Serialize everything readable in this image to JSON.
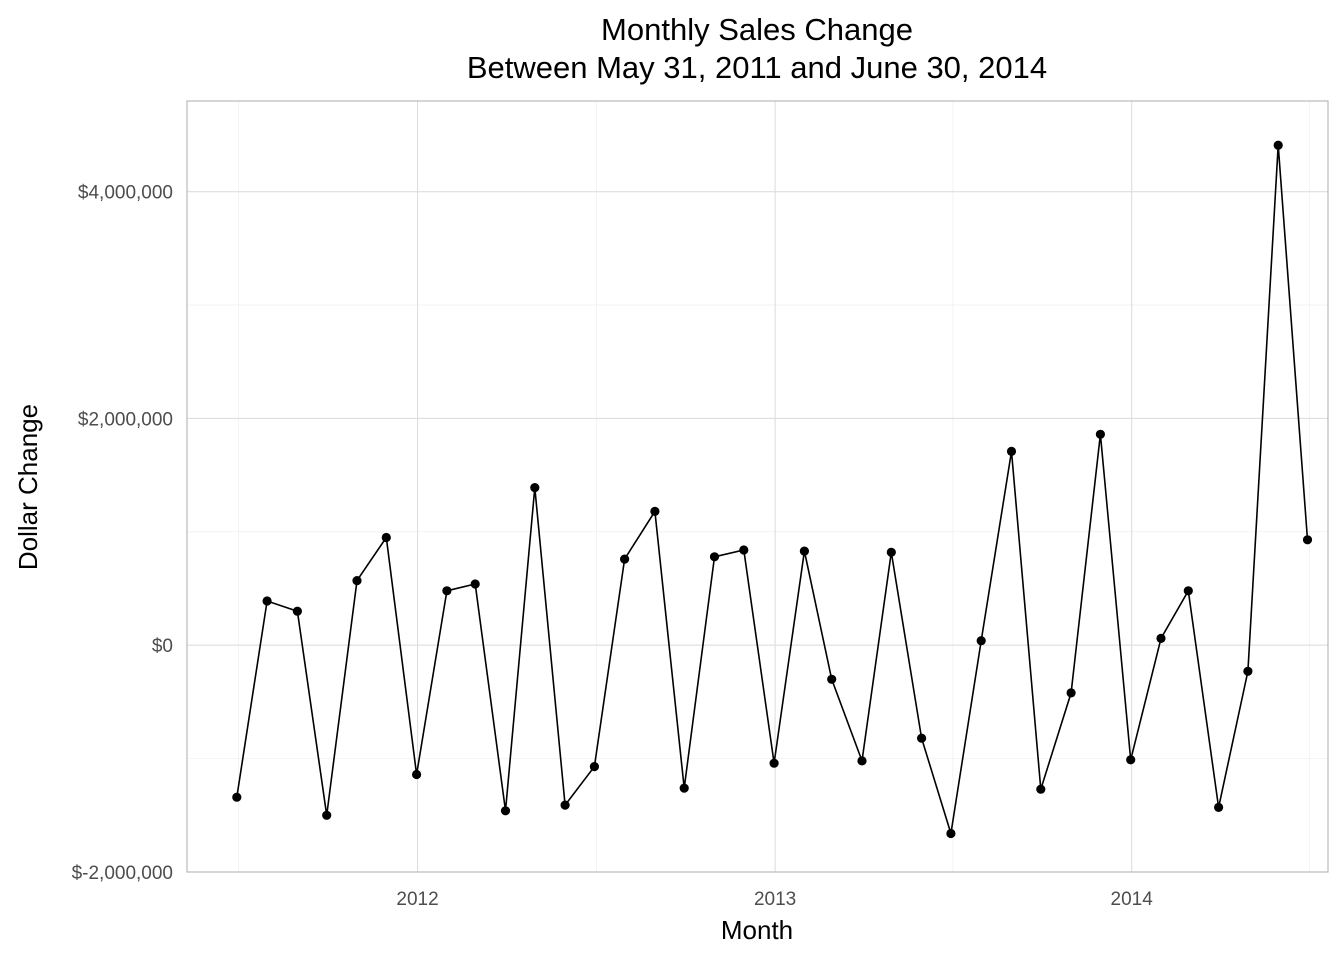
{
  "chart_data": {
    "type": "line",
    "title": "Monthly Sales Change",
    "subtitle": "Between May 31, 2011 and  June 30, 2014",
    "xlabel": "Month",
    "ylabel": "Dollar Change",
    "x_ticks": [
      {
        "label": "2012",
        "date": "2012-01-01"
      },
      {
        "label": "2013",
        "date": "2013-01-01"
      },
      {
        "label": "2014",
        "date": "2014-01-01"
      }
    ],
    "y_ticks": [
      {
        "label": "$-2,000,000",
        "value": -2000000
      },
      {
        "label": "$0",
        "value": 0
      },
      {
        "label": "$2,000,000",
        "value": 2000000
      },
      {
        "label": "$4,000,000",
        "value": 4000000
      }
    ],
    "xlim": [
      "2011-05-10",
      "2014-07-21"
    ],
    "ylim": [
      -2000000,
      4800000
    ],
    "grid": true,
    "legend": "none",
    "colors": {
      "line": "#000000",
      "point": "#000000",
      "grid": "#dedede",
      "border": "#b3b3b3"
    },
    "series": [
      {
        "x": [
          "2011-06-30",
          "2011-07-31",
          "2011-08-31",
          "2011-09-30",
          "2011-10-31",
          "2011-11-30",
          "2011-12-31",
          "2012-01-31",
          "2012-02-29",
          "2012-03-31",
          "2012-04-30",
          "2012-05-31",
          "2012-06-30",
          "2012-07-31",
          "2012-08-31",
          "2012-09-30",
          "2012-10-31",
          "2012-11-30",
          "2012-12-31",
          "2013-01-31",
          "2013-02-28",
          "2013-03-31",
          "2013-04-30",
          "2013-05-31",
          "2013-06-30",
          "2013-07-31",
          "2013-08-31",
          "2013-09-30",
          "2013-10-31",
          "2013-11-30",
          "2013-12-31",
          "2014-01-31",
          "2014-02-28",
          "2014-03-31",
          "2014-04-30",
          "2014-05-31",
          "2014-06-30"
        ],
        "values": [
          -1340000,
          390000,
          300000,
          -1500000,
          570000,
          950000,
          -1140000,
          480000,
          540000,
          -1460000,
          1390000,
          -1410000,
          -1070000,
          760000,
          1180000,
          -1260000,
          780000,
          840000,
          -1040000,
          830000,
          -300000,
          -1020000,
          820000,
          -820000,
          -1660000,
          40000,
          1710000,
          -1270000,
          -420000,
          1860000,
          -1010000,
          60000,
          480000,
          -1430000,
          -230000,
          4410000,
          930000
        ]
      }
    ]
  }
}
